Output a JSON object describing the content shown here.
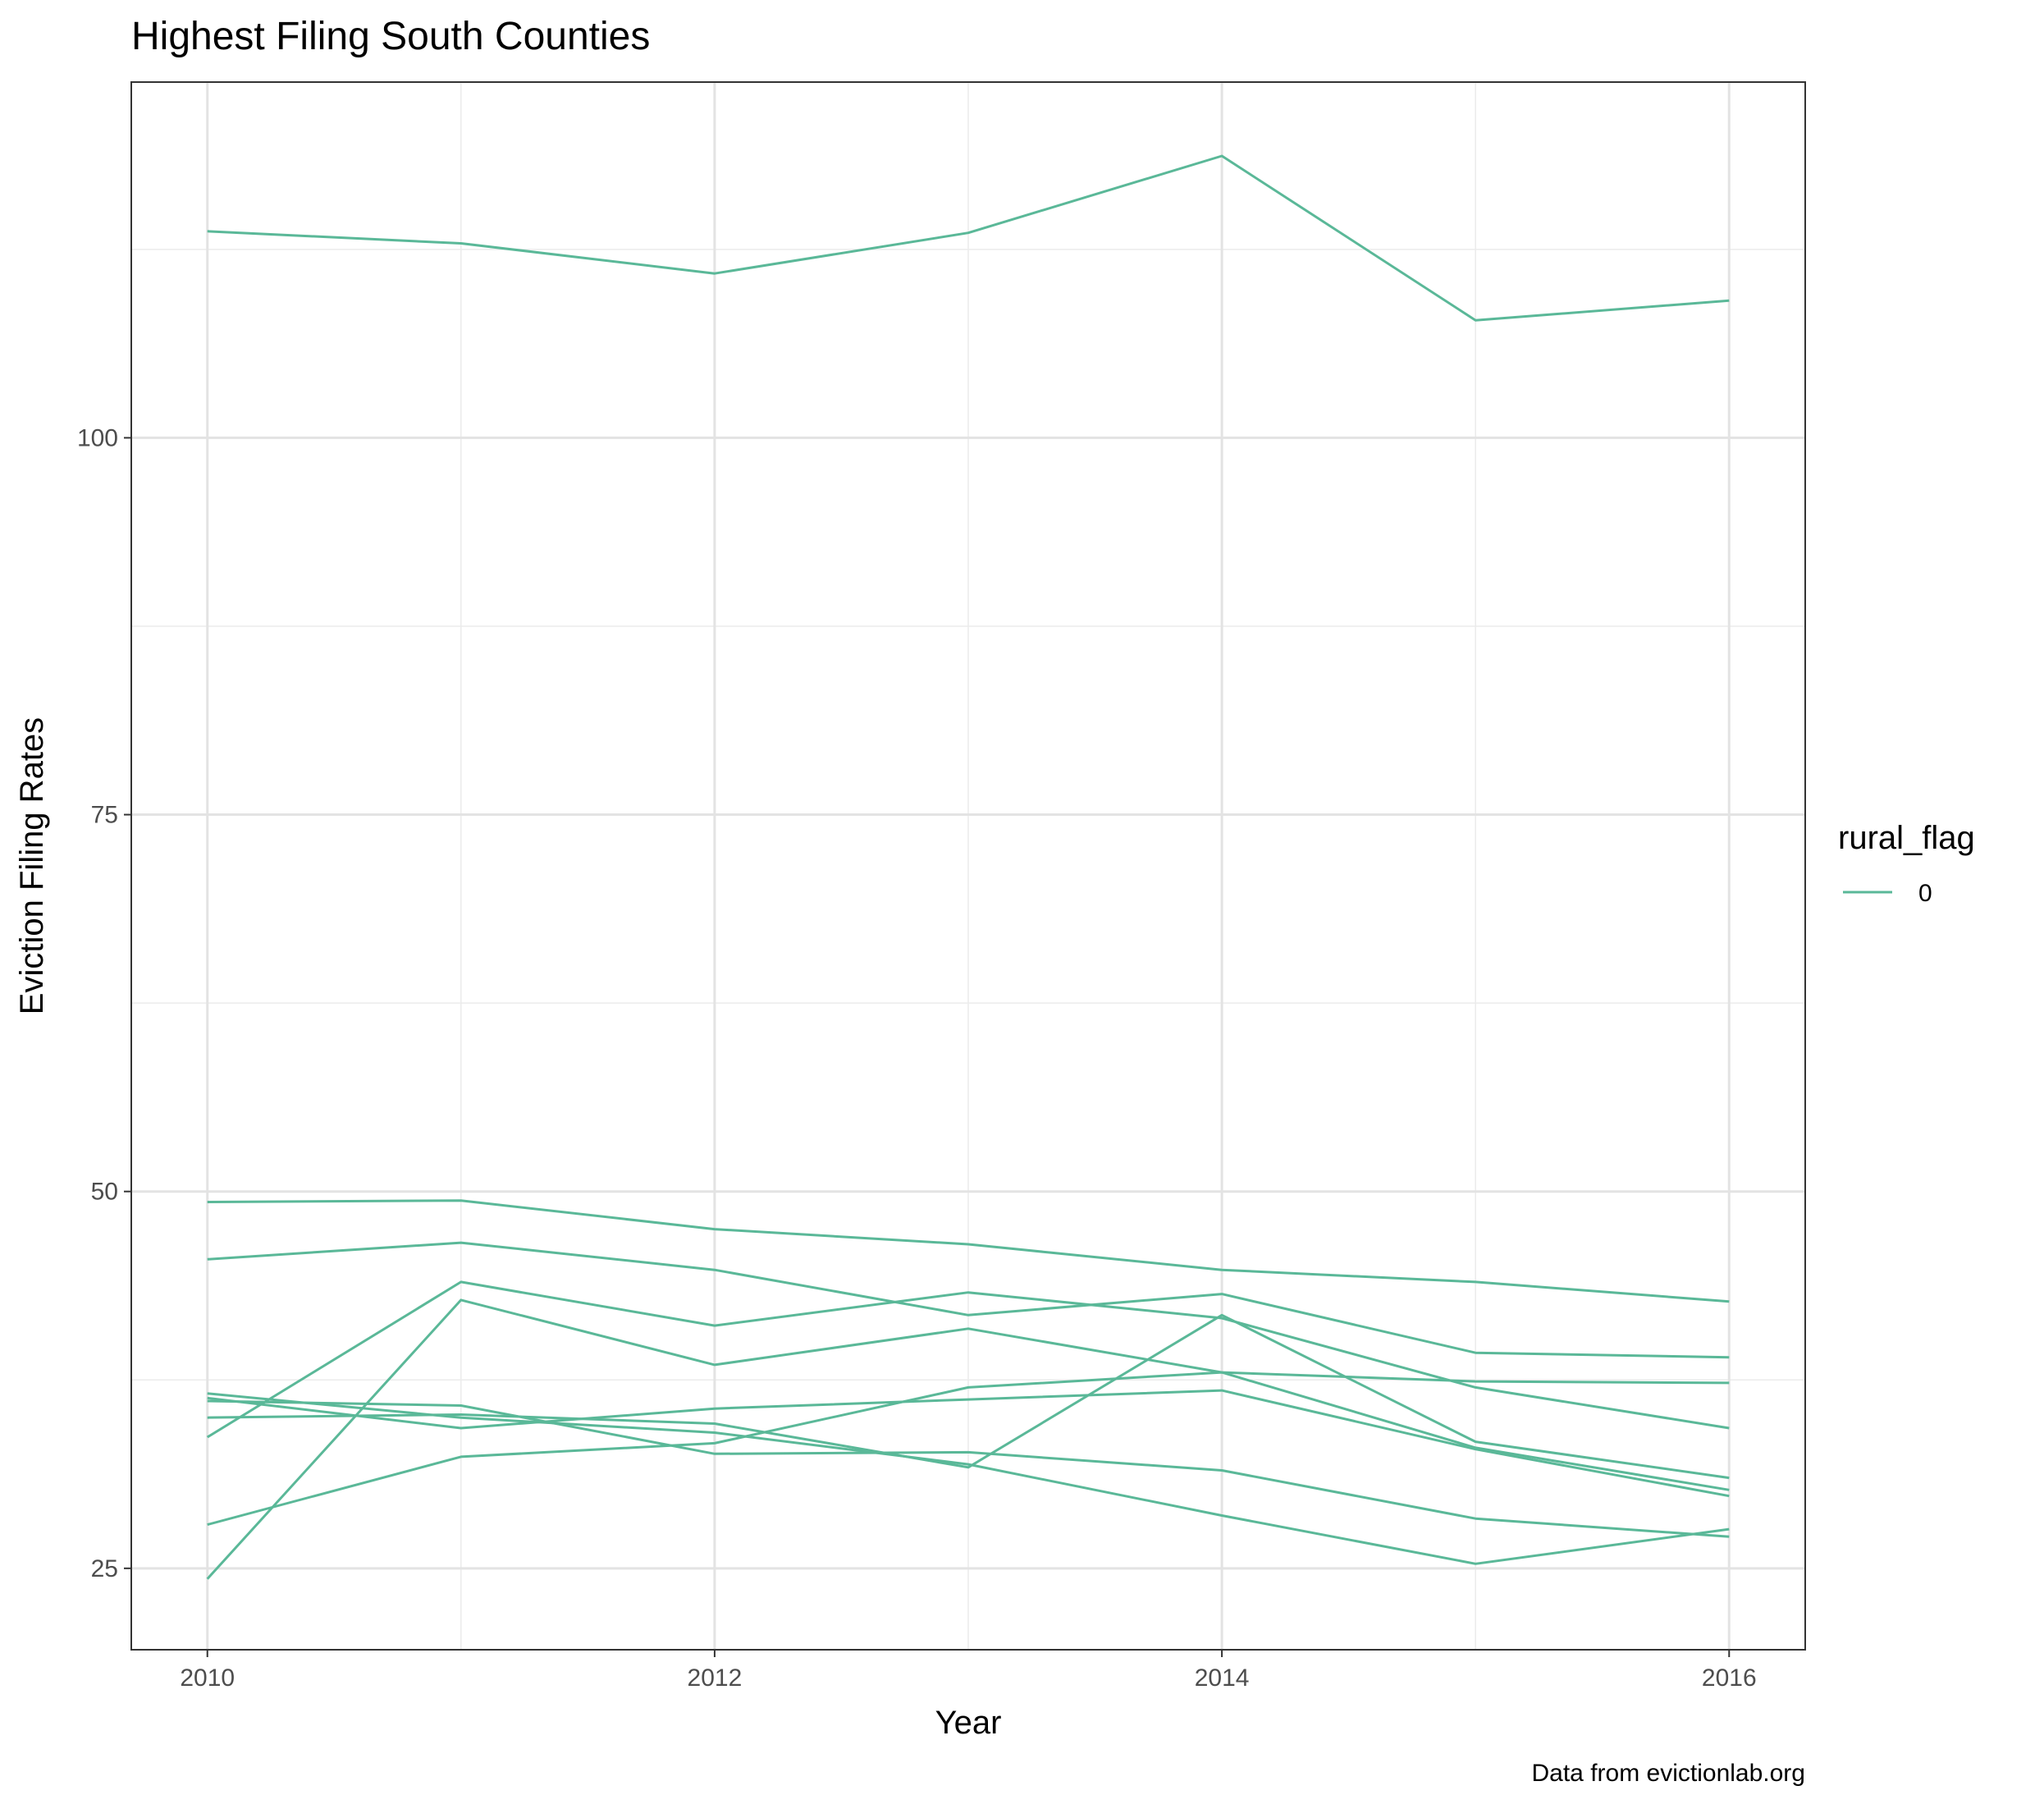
{
  "chart_data": {
    "type": "line",
    "title": "Highest Filing South Counties",
    "xlabel": "Year",
    "ylabel": "Eviction Filing Rates",
    "caption": "Data from evictionlab.org",
    "x": [
      2010,
      2011,
      2012,
      2013,
      2014,
      2015,
      2016
    ],
    "xlim": [
      2009.7,
      2016.3
    ],
    "ylim": [
      19.6,
      123.6
    ],
    "x_ticks": [
      "2010",
      "2012",
      "2014",
      "2016"
    ],
    "y_ticks": [
      "25",
      "50",
      "75",
      "100"
    ],
    "grid": true,
    "line_color": "#5ab898",
    "legend": {
      "title": "rural_flag",
      "labels": [
        "0"
      ],
      "position": "right"
    },
    "series": [
      {
        "values": [
          113.7,
          112.9,
          110.9,
          113.6,
          118.7,
          107.8,
          109.1
        ]
      },
      {
        "values": [
          49.3,
          49.4,
          47.5,
          46.5,
          44.8,
          44.0,
          42.7
        ]
      },
      {
        "values": [
          45.5,
          46.6,
          44.8,
          41.8,
          43.2,
          39.3,
          39.0
        ]
      },
      {
        "values": [
          33.7,
          44.0,
          41.1,
          43.3,
          41.6,
          37.0,
          34.3
        ]
      },
      {
        "values": [
          24.3,
          42.8,
          38.5,
          40.9,
          38.0,
          33.0,
          30.2
        ]
      },
      {
        "values": [
          36.3,
          34.3,
          35.6,
          36.2,
          36.8,
          32.9,
          29.8
        ]
      },
      {
        "values": [
          36.1,
          35.8,
          32.6,
          32.7,
          31.5,
          28.3,
          27.1
        ]
      },
      {
        "values": [
          35.0,
          35.2,
          34.6,
          31.7,
          41.8,
          33.4,
          31.0
        ]
      },
      {
        "values": [
          27.9,
          32.4,
          33.3,
          37.0,
          38.0,
          37.4,
          37.3
        ]
      },
      {
        "values": [
          36.6,
          35.0,
          34.0,
          31.9,
          28.5,
          25.3,
          27.6
        ]
      }
    ]
  }
}
